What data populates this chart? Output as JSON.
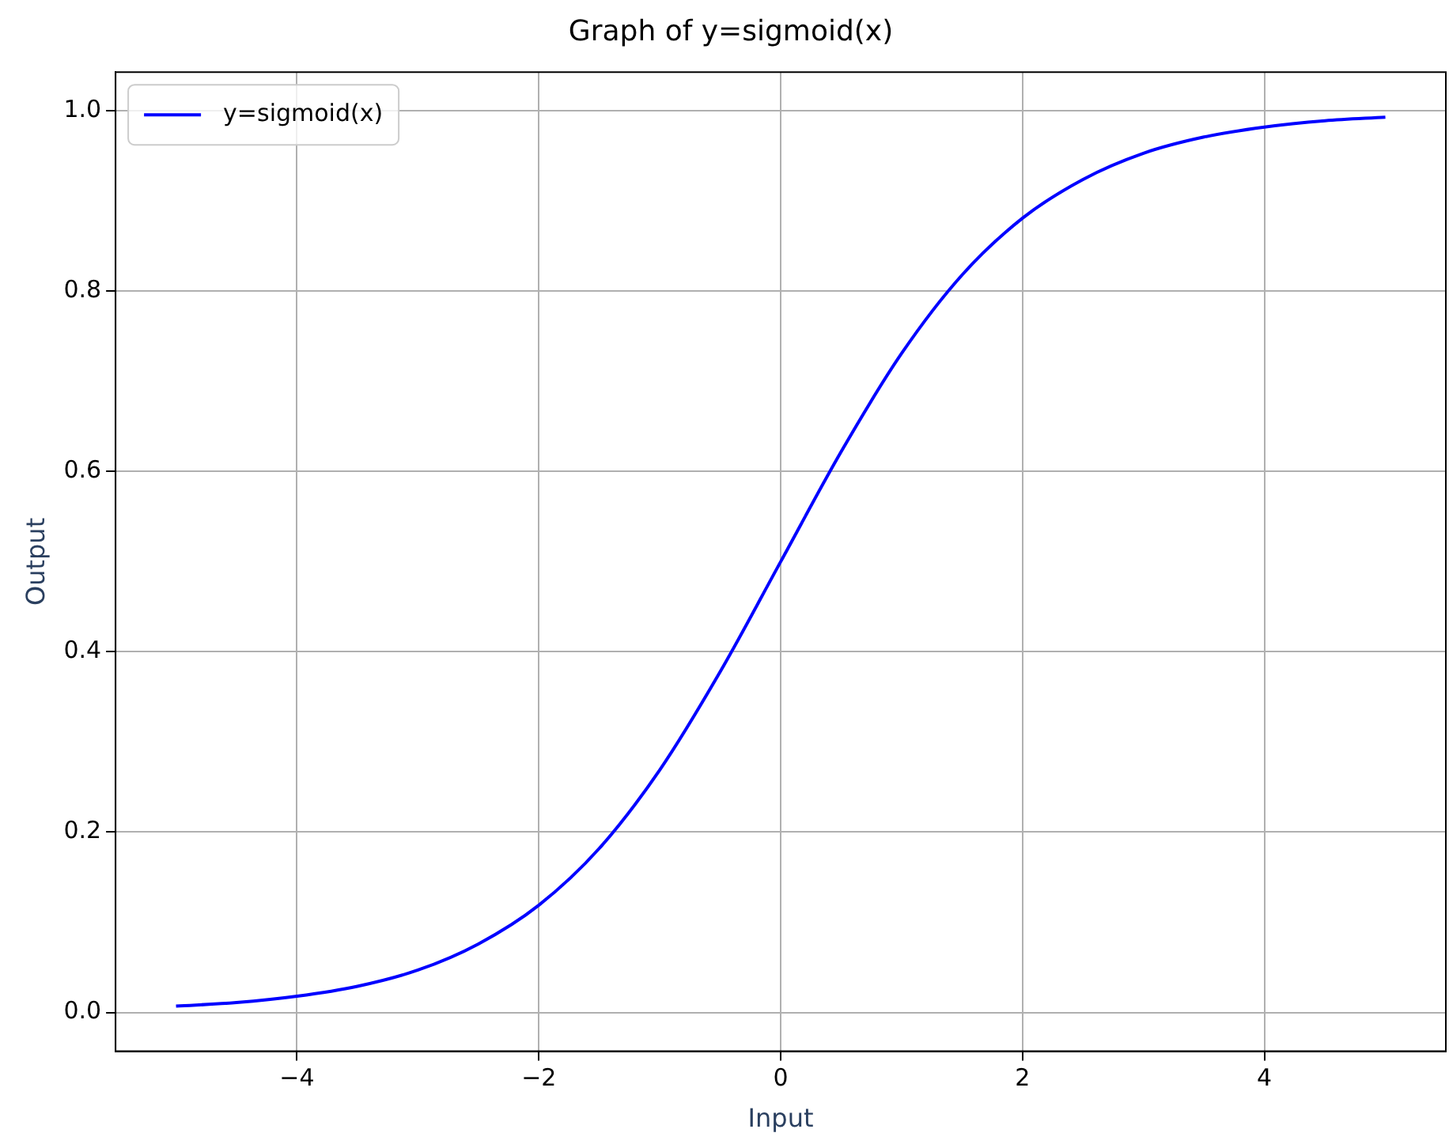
{
  "chart_data": {
    "type": "line",
    "title": "Graph of y=sigmoid(x)",
    "xlabel": "Input",
    "ylabel": "Output",
    "x": [
      -5,
      -4.5,
      -4,
      -3.5,
      -3,
      -2.5,
      -2,
      -1.5,
      -1,
      -0.5,
      0,
      0.5,
      1,
      1.5,
      2,
      2.5,
      3,
      3.5,
      4,
      4.5,
      5
    ],
    "series": [
      {
        "name": "y=sigmoid(x)",
        "color": "#0000ff",
        "values": [
          0.007,
          0.011,
          0.018,
          0.029,
          0.047,
          0.076,
          0.119,
          0.182,
          0.269,
          0.378,
          0.5,
          0.622,
          0.731,
          0.818,
          0.881,
          0.924,
          0.953,
          0.971,
          0.982,
          0.989,
          0.993
        ]
      }
    ],
    "xlim": [
      -5.5,
      5.5
    ],
    "ylim": [
      -0.043,
      1.043
    ],
    "xticks": [
      {
        "value": -4,
        "label": "−4"
      },
      {
        "value": -2,
        "label": "−2"
      },
      0,
      2,
      4
    ],
    "yticks": [
      {
        "value": 0,
        "label": "0.0"
      },
      {
        "value": 0.2,
        "label": "0.2"
      },
      {
        "value": 0.4,
        "label": "0.4"
      },
      {
        "value": 0.6,
        "label": "0.6"
      },
      {
        "value": 0.8,
        "label": "0.8"
      },
      {
        "value": 1,
        "label": "1.0"
      }
    ],
    "grid": true,
    "legend": "top left",
    "marker": "none",
    "line_style": "solid"
  }
}
